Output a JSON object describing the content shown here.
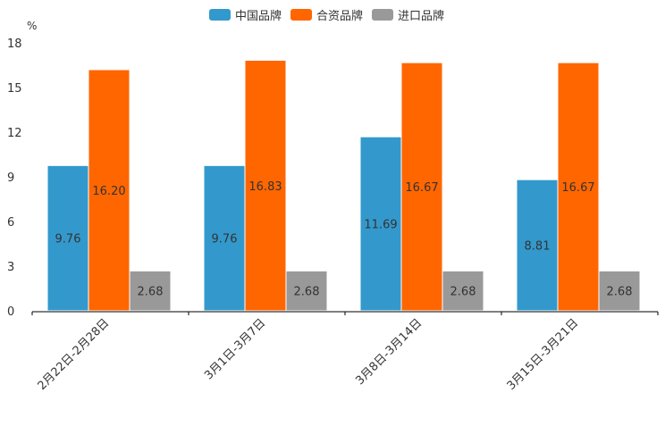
{
  "chart_data": {
    "type": "bar",
    "unit": "%",
    "categories": [
      "2月22日-2月28日",
      "3月1日-3月7日",
      "3月8日-3月14日",
      "3月15日-3月21日"
    ],
    "series": [
      {
        "name": "中国品牌",
        "color": "#3399cc",
        "values": [
          9.76,
          9.76,
          11.69,
          8.81
        ],
        "labels": [
          "9.76",
          "9.76",
          "11.69",
          "8.81"
        ]
      },
      {
        "name": "合资品牌",
        "color": "#ff6600",
        "values": [
          16.2,
          16.83,
          16.67,
          16.67
        ],
        "labels": [
          "16.20",
          "16.83",
          "16.67",
          "16.67"
        ]
      },
      {
        "name": "进口品牌",
        "color": "#999999",
        "values": [
          2.68,
          2.68,
          2.68,
          2.68
        ],
        "labels": [
          "2.68",
          "2.68",
          "2.68",
          "2.68"
        ]
      }
    ],
    "yticks": [
      "0",
      "3",
      "6",
      "9",
      "12",
      "15",
      "18"
    ],
    "ylim": [
      0,
      18
    ],
    "grid": false,
    "legend": "top-center"
  }
}
